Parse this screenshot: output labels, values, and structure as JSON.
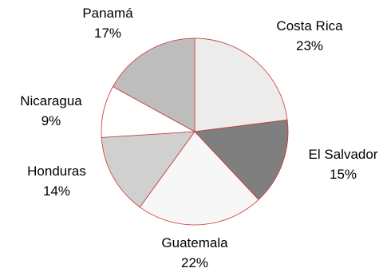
{
  "chart_data": {
    "type": "pie",
    "start_angle_deg": 0,
    "direction": "clockwise",
    "slice_border_color": "#cc3333",
    "slices": [
      {
        "label": "Costa Rica",
        "value": 23,
        "display": "23%",
        "color": "#ececec"
      },
      {
        "label": "El Salvador",
        "value": 15,
        "display": "15%",
        "color": "#7f7f7f"
      },
      {
        "label": "Guatemala",
        "value": 22,
        "display": "22%",
        "color": "#f7f7f7"
      },
      {
        "label": "Honduras",
        "value": 14,
        "display": "14%",
        "color": "#d0d0d0"
      },
      {
        "label": "Nicaragua",
        "value": 9,
        "display": "9%",
        "color": "#ffffff"
      },
      {
        "label": "Panamá",
        "value": 17,
        "display": "17%",
        "color": "#bdbdbd"
      }
    ]
  }
}
